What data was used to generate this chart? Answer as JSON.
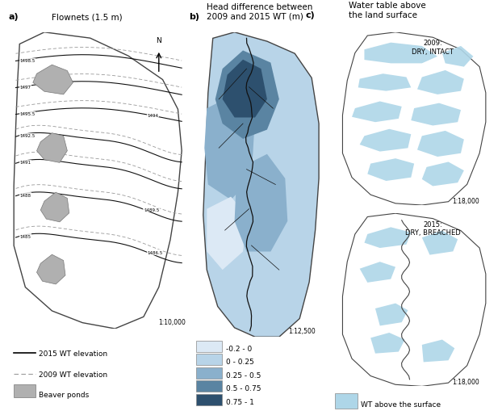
{
  "title_a": "Flownets (1.5 m)",
  "title_b": "Head difference between\n2009 and 2015 WT (m)",
  "title_c": "Water table above\nthe land surface",
  "panel_labels": [
    "a)",
    "b)",
    "c)"
  ],
  "scale_a": "1:10,000",
  "scale_b": "1:12,500",
  "scale_c": "1:18,000",
  "legend_a": [
    "2015 WT elevation",
    "2009 WT elevation",
    "Beaver ponds"
  ],
  "legend_b_labels": [
    "-0.2 - 0",
    "0 - 0.25",
    "0.25 - 0.5",
    "0.5 - 0.75",
    "0.75 - 1"
  ],
  "legend_b_colors": [
    "#dce9f5",
    "#b8d4e8",
    "#8ab0cc",
    "#5a84a2",
    "#2d506e"
  ],
  "legend_c_label": "WT above the surface",
  "legend_c_color": "#aed6e8",
  "annotation_c_top": "2009:\nDRY, INTACT",
  "annotation_c_bottom": "2015:\nDRY, BREACHED",
  "background_color": "#ffffff",
  "map_outline_color": "#444444",
  "contour_color_solid": "#111111",
  "contour_color_dashed": "#999999",
  "pond_fill_color": "#b0b0b0",
  "wt_color": "#aed6e8",
  "river_color": "#111111"
}
